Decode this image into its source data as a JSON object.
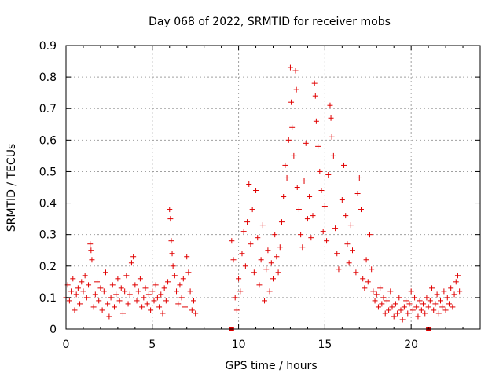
{
  "chart_data": {
    "type": "scatter",
    "title": "Day 068 of 2022, SRMTID for receiver mobs",
    "xlabel": "GPS time / hours",
    "ylabel": "SRMTID / TECUs",
    "xlim": [
      0,
      24
    ],
    "ylim": [
      0,
      0.9
    ],
    "xticks": [
      "0",
      "5",
      "10",
      "15",
      "20"
    ],
    "yticks": [
      "0",
      "0.1",
      "0.2",
      "0.3",
      "0.4",
      "0.5",
      "0.6",
      "0.7",
      "0.8",
      "0.9"
    ],
    "grid": true,
    "marker": "plus",
    "color": "#e00000",
    "series": [
      {
        "name": "SRMTID",
        "points": [
          [
            0.0,
            0.1
          ],
          [
            0.1,
            0.14
          ],
          [
            0.2,
            0.09
          ],
          [
            0.3,
            0.12
          ],
          [
            0.4,
            0.16
          ],
          [
            0.5,
            0.06
          ],
          [
            0.6,
            0.11
          ],
          [
            0.7,
            0.13
          ],
          [
            0.8,
            0.08
          ],
          [
            0.9,
            0.15
          ],
          [
            1.0,
            0.12
          ],
          [
            1.1,
            0.17
          ],
          [
            1.2,
            0.1
          ],
          [
            1.3,
            0.14
          ],
          [
            1.4,
            0.27
          ],
          [
            1.45,
            0.25
          ],
          [
            1.5,
            0.22
          ],
          [
            1.6,
            0.07
          ],
          [
            1.7,
            0.11
          ],
          [
            1.8,
            0.15
          ],
          [
            1.9,
            0.09
          ],
          [
            2.0,
            0.13
          ],
          [
            2.1,
            0.06
          ],
          [
            2.2,
            0.12
          ],
          [
            2.3,
            0.18
          ],
          [
            2.4,
            0.08
          ],
          [
            2.5,
            0.04
          ],
          [
            2.6,
            0.1
          ],
          [
            2.7,
            0.14
          ],
          [
            2.8,
            0.07
          ],
          [
            2.9,
            0.11
          ],
          [
            3.0,
            0.16
          ],
          [
            3.1,
            0.09
          ],
          [
            3.2,
            0.13
          ],
          [
            3.3,
            0.05
          ],
          [
            3.4,
            0.12
          ],
          [
            3.5,
            0.17
          ],
          [
            3.6,
            0.08
          ],
          [
            3.7,
            0.11
          ],
          [
            3.8,
            0.21
          ],
          [
            3.9,
            0.23
          ],
          [
            4.0,
            0.14
          ],
          [
            4.1,
            0.09
          ],
          [
            4.2,
            0.12
          ],
          [
            4.3,
            0.16
          ],
          [
            4.4,
            0.07
          ],
          [
            4.5,
            0.1
          ],
          [
            4.6,
            0.13
          ],
          [
            4.7,
            0.08
          ],
          [
            4.8,
            0.11
          ],
          [
            4.9,
            0.06
          ],
          [
            5.0,
            0.12
          ],
          [
            5.1,
            0.09
          ],
          [
            5.2,
            0.14
          ],
          [
            5.3,
            0.1
          ],
          [
            5.4,
            0.07
          ],
          [
            5.5,
            0.11
          ],
          [
            5.6,
            0.05
          ],
          [
            5.7,
            0.13
          ],
          [
            5.8,
            0.09
          ],
          [
            5.9,
            0.15
          ],
          [
            6.0,
            0.38
          ],
          [
            6.05,
            0.35
          ],
          [
            6.1,
            0.28
          ],
          [
            6.15,
            0.24
          ],
          [
            6.2,
            0.2
          ],
          [
            6.3,
            0.17
          ],
          [
            6.4,
            0.12
          ],
          [
            6.5,
            0.08
          ],
          [
            6.6,
            0.14
          ],
          [
            6.7,
            0.1
          ],
          [
            6.8,
            0.16
          ],
          [
            6.9,
            0.07
          ],
          [
            7.0,
            0.23
          ],
          [
            7.1,
            0.18
          ],
          [
            7.2,
            0.12
          ],
          [
            7.3,
            0.06
          ],
          [
            7.4,
            0.09
          ],
          [
            7.5,
            0.05
          ],
          [
            9.6,
            0.28
          ],
          [
            9.7,
            0.22
          ],
          [
            9.8,
            0.1
          ],
          [
            9.9,
            0.06
          ],
          [
            10.0,
            0.16
          ],
          [
            10.1,
            0.12
          ],
          [
            10.2,
            0.24
          ],
          [
            10.3,
            0.31
          ],
          [
            10.4,
            0.2
          ],
          [
            10.5,
            0.34
          ],
          [
            10.6,
            0.46
          ],
          [
            10.7,
            0.27
          ],
          [
            10.8,
            0.38
          ],
          [
            10.9,
            0.18
          ],
          [
            11.0,
            0.44
          ],
          [
            11.1,
            0.29
          ],
          [
            11.2,
            0.14
          ],
          [
            11.3,
            0.22
          ],
          [
            11.4,
            0.33
          ],
          [
            11.5,
            0.09
          ],
          [
            11.6,
            0.19
          ],
          [
            11.7,
            0.25
          ],
          [
            11.8,
            0.12
          ],
          [
            11.9,
            0.21
          ],
          [
            12.0,
            0.16
          ],
          [
            12.1,
            0.3
          ],
          [
            12.2,
            0.23
          ],
          [
            12.3,
            0.18
          ],
          [
            12.4,
            0.26
          ],
          [
            12.5,
            0.34
          ],
          [
            12.6,
            0.42
          ],
          [
            12.7,
            0.52
          ],
          [
            12.8,
            0.48
          ],
          [
            12.9,
            0.6
          ],
          [
            13.0,
            0.83
          ],
          [
            13.05,
            0.72
          ],
          [
            13.1,
            0.64
          ],
          [
            13.2,
            0.55
          ],
          [
            13.3,
            0.82
          ],
          [
            13.35,
            0.76
          ],
          [
            13.4,
            0.45
          ],
          [
            13.5,
            0.38
          ],
          [
            13.6,
            0.3
          ],
          [
            13.7,
            0.26
          ],
          [
            13.8,
            0.47
          ],
          [
            13.9,
            0.59
          ],
          [
            14.0,
            0.35
          ],
          [
            14.1,
            0.42
          ],
          [
            14.2,
            0.29
          ],
          [
            14.3,
            0.36
          ],
          [
            14.4,
            0.78
          ],
          [
            14.45,
            0.74
          ],
          [
            14.5,
            0.66
          ],
          [
            14.6,
            0.58
          ],
          [
            14.7,
            0.5
          ],
          [
            14.8,
            0.44
          ],
          [
            14.9,
            0.31
          ],
          [
            15.0,
            0.39
          ],
          [
            15.1,
            0.28
          ],
          [
            15.2,
            0.49
          ],
          [
            15.3,
            0.71
          ],
          [
            15.35,
            0.67
          ],
          [
            15.4,
            0.61
          ],
          [
            15.5,
            0.55
          ],
          [
            15.6,
            0.32
          ],
          [
            15.7,
            0.24
          ],
          [
            15.8,
            0.19
          ],
          [
            16.0,
            0.41
          ],
          [
            16.1,
            0.52
          ],
          [
            16.2,
            0.36
          ],
          [
            16.3,
            0.27
          ],
          [
            16.4,
            0.21
          ],
          [
            16.5,
            0.33
          ],
          [
            16.6,
            0.25
          ],
          [
            16.8,
            0.18
          ],
          [
            16.9,
            0.43
          ],
          [
            17.0,
            0.48
          ],
          [
            17.1,
            0.38
          ],
          [
            17.2,
            0.16
          ],
          [
            17.3,
            0.13
          ],
          [
            17.4,
            0.22
          ],
          [
            17.5,
            0.15
          ],
          [
            17.6,
            0.3
          ],
          [
            17.7,
            0.19
          ],
          [
            17.8,
            0.12
          ],
          [
            17.9,
            0.09
          ],
          [
            18.0,
            0.11
          ],
          [
            18.1,
            0.07
          ],
          [
            18.2,
            0.13
          ],
          [
            18.3,
            0.08
          ],
          [
            18.4,
            0.1
          ],
          [
            18.5,
            0.05
          ],
          [
            18.6,
            0.09
          ],
          [
            18.7,
            0.06
          ],
          [
            18.8,
            0.12
          ],
          [
            18.9,
            0.07
          ],
          [
            19.0,
            0.04
          ],
          [
            19.1,
            0.08
          ],
          [
            19.2,
            0.05
          ],
          [
            19.3,
            0.1
          ],
          [
            19.4,
            0.06
          ],
          [
            19.5,
            0.03
          ],
          [
            19.6,
            0.07
          ],
          [
            19.7,
            0.09
          ],
          [
            19.8,
            0.05
          ],
          [
            19.9,
            0.08
          ],
          [
            20.0,
            0.12
          ],
          [
            20.1,
            0.06
          ],
          [
            20.2,
            0.1
          ],
          [
            20.3,
            0.07
          ],
          [
            20.4,
            0.04
          ],
          [
            20.5,
            0.09
          ],
          [
            20.6,
            0.06
          ],
          [
            20.7,
            0.08
          ],
          [
            20.8,
            0.05
          ],
          [
            20.9,
            0.1
          ],
          [
            21.0,
            0.07
          ],
          [
            21.1,
            0.09
          ],
          [
            21.2,
            0.13
          ],
          [
            21.3,
            0.06
          ],
          [
            21.4,
            0.08
          ],
          [
            21.5,
            0.11
          ],
          [
            21.6,
            0.05
          ],
          [
            21.7,
            0.09
          ],
          [
            21.8,
            0.07
          ],
          [
            21.9,
            0.12
          ],
          [
            22.0,
            0.06
          ],
          [
            22.1,
            0.1
          ],
          [
            22.2,
            0.08
          ],
          [
            22.3,
            0.13
          ],
          [
            22.4,
            0.07
          ],
          [
            22.5,
            0.11
          ],
          [
            22.6,
            0.15
          ],
          [
            22.7,
            0.17
          ],
          [
            22.8,
            0.12
          ]
        ]
      },
      {
        "name": "zero-markers",
        "marker": "square",
        "points": [
          [
            9.6,
            0.0
          ],
          [
            21.0,
            0.0
          ]
        ]
      }
    ]
  }
}
